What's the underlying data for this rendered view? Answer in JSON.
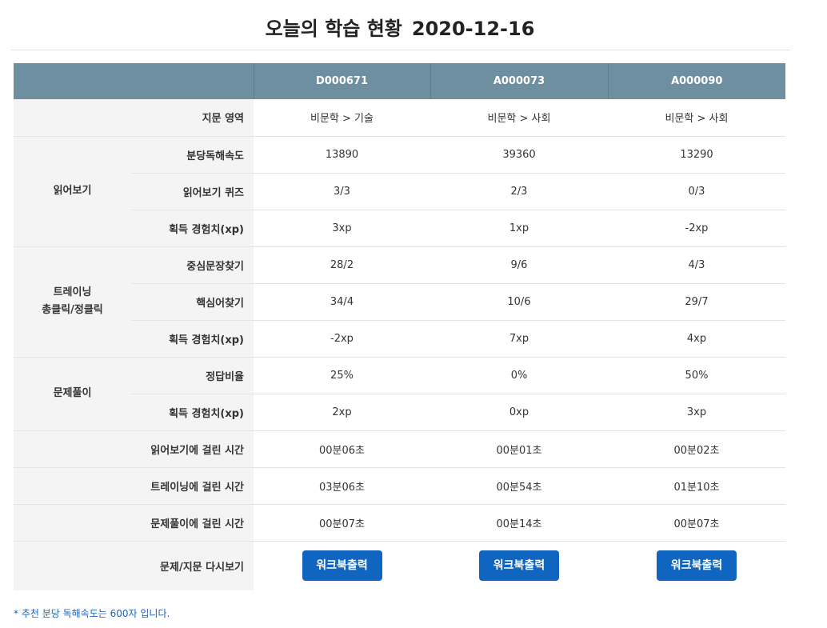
{
  "page": {
    "title": "오늘의 학습 현황",
    "date": "2020-12-16"
  },
  "table": {
    "columns": [
      "D000671",
      "A000073",
      "A000090"
    ],
    "rows": {
      "area": {
        "label": "지문 영역",
        "values": [
          "비문학 > 기술",
          "비문학 > 사회",
          "비문학 > 사회"
        ]
      },
      "reading": {
        "group": "읽어보기",
        "speed": {
          "label": "분당독해속도",
          "values": [
            "13890",
            "39360",
            "13290"
          ]
        },
        "quiz": {
          "label": "읽어보기 퀴즈",
          "values": [
            "3/3",
            "2/3",
            "0/3"
          ]
        },
        "xp": {
          "label": "획득 경험치(xp)",
          "values": [
            "3xp",
            "1xp",
            "-2xp"
          ]
        }
      },
      "training": {
        "group_line1": "트레이닝",
        "group_line2": "총클릭/정클릭",
        "central": {
          "label": "중심문장찾기",
          "values": [
            "28/2",
            "9/6",
            "4/3"
          ]
        },
        "keyword": {
          "label": "핵심어찾기",
          "values": [
            "34/4",
            "10/6",
            "29/7"
          ]
        },
        "xp": {
          "label": "획득 경험치(xp)",
          "values": [
            "-2xp",
            "7xp",
            "4xp"
          ]
        }
      },
      "problem": {
        "group": "문제풀이",
        "ratio": {
          "label": "정답비율",
          "values": [
            "25%",
            "0%",
            "50%"
          ]
        },
        "xp": {
          "label": "획득 경험치(xp)",
          "values": [
            "2xp",
            "0xp",
            "3xp"
          ]
        }
      },
      "time_reading": {
        "label": "읽어보기에 걸린 시간",
        "values": [
          "00분06초",
          "00분01초",
          "00분02초"
        ]
      },
      "time_training": {
        "label": "트레이닝에 걸린 시간",
        "values": [
          "03분06초",
          "00분54초",
          "01분10초"
        ]
      },
      "time_problem": {
        "label": "문제풀이에 걸린 시간",
        "values": [
          "00분07초",
          "00분14초",
          "00분07초"
        ]
      },
      "review": {
        "label": "문제/지문 다시보기",
        "button_label": "워크북출력"
      }
    }
  },
  "footnote": "* 추천 분당 독해속도는 600자 입니다.",
  "colors": {
    "header_bg": "#6e8fa0",
    "button_bg": "#1065c0",
    "footnote": "#1c63b7"
  }
}
